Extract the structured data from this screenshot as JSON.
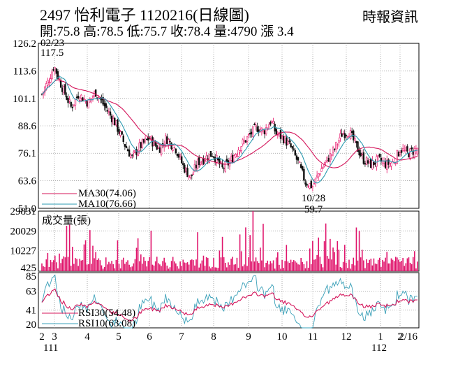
{
  "header": {
    "title": "2497  怡利電子 1120216(日線圖)",
    "stats": "開:75.8 高:78.5 低:75.7 收:78.4 量:4790 漲 3.4",
    "source": "時報資訊"
  },
  "colors": {
    "up": "#e8176c",
    "down": "#111111",
    "ma30": "#d4145a",
    "ma10": "#2a9ab0",
    "volume": "#e0156c",
    "rsi30": "#d4145a",
    "rsi10": "#3aa0b8",
    "grid": "#9a9a9a"
  },
  "chart_data": [
    {
      "type": "candlestick",
      "panel": "price",
      "y_ticks": [
        "126.2",
        "113.6",
        "101.1",
        "88.6",
        "76.1",
        "63.6",
        "51.0"
      ],
      "ylim": [
        51.0,
        126.2
      ],
      "x_ticks": [
        "2",
        "3",
        "4",
        "5",
        "6",
        "7",
        "8",
        "9",
        "10",
        "11",
        "12",
        "1",
        "2",
        "2/16"
      ],
      "x_year_labels": [
        "111",
        "112"
      ],
      "annotations": [
        {
          "date": "02/23",
          "value": "117.5"
        },
        {
          "date": "10/28",
          "value": "59.7"
        }
      ],
      "legend": [
        {
          "label": "MA30(74.06)",
          "color_key": "ma30"
        },
        {
          "label": "MA10(76.66)",
          "color_key": "ma10"
        }
      ],
      "close_keypoints": [
        [
          0,
          103
        ],
        [
          3,
          110
        ],
        [
          5,
          116
        ],
        [
          8,
          107
        ],
        [
          12,
          97
        ],
        [
          15,
          103
        ],
        [
          19,
          99
        ],
        [
          22,
          104
        ],
        [
          26,
          97
        ],
        [
          30,
          90
        ],
        [
          34,
          80
        ],
        [
          37,
          74
        ],
        [
          40,
          79
        ],
        [
          44,
          83
        ],
        [
          48,
          78
        ],
        [
          51,
          83
        ],
        [
          55,
          78
        ],
        [
          58,
          70
        ],
        [
          61,
          65
        ],
        [
          64,
          72
        ],
        [
          67,
          74
        ],
        [
          70,
          76
        ],
        [
          74,
          69
        ],
        [
          77,
          72
        ],
        [
          81,
          79
        ],
        [
          85,
          84
        ],
        [
          88,
          88
        ],
        [
          91,
          86
        ],
        [
          94,
          91
        ],
        [
          96,
          85
        ],
        [
          99,
          83
        ],
        [
          102,
          79
        ],
        [
          105,
          72
        ],
        [
          108,
          63
        ],
        [
          111,
          61
        ],
        [
          114,
          68
        ],
        [
          117,
          73
        ],
        [
          120,
          78
        ],
        [
          123,
          85
        ],
        [
          126,
          86
        ],
        [
          129,
          79
        ],
        [
          132,
          73
        ],
        [
          135,
          71
        ],
        [
          138,
          73
        ],
        [
          141,
          71
        ],
        [
          144,
          72
        ],
        [
          147,
          78
        ],
        [
          150,
          76
        ],
        [
          152,
          77
        ],
        [
          154,
          78.4
        ]
      ]
    },
    {
      "type": "bar",
      "panel": "volume",
      "title": "成交量(張)",
      "y_ticks": [
        "29831",
        "20029",
        "10227",
        "425"
      ],
      "ylim": [
        0,
        29831
      ],
      "last_volume": 4790
    },
    {
      "type": "line",
      "panel": "rsi",
      "y_ticks": [
        "85",
        "63",
        "41",
        "20"
      ],
      "ylim": [
        20,
        85
      ],
      "series": [
        {
          "name": "RSI30(54.48)",
          "color_key": "rsi30"
        },
        {
          "name": "RSI10(63.08)",
          "color_key": "rsi10"
        }
      ]
    }
  ]
}
